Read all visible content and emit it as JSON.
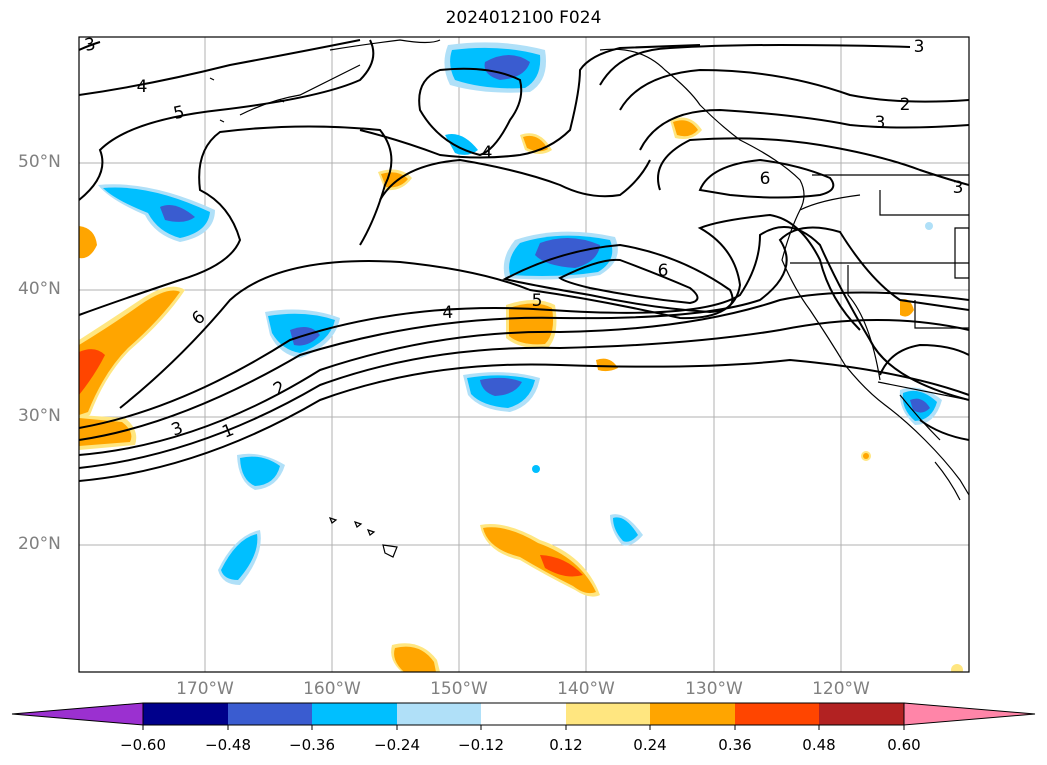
{
  "title": "2024012100 F024",
  "map": {
    "lat_labels": [
      "50°N",
      "40°N",
      "30°N",
      "20°N"
    ],
    "lon_labels": [
      "170°W",
      "160°W",
      "150°W",
      "140°W",
      "130°W",
      "120°W"
    ],
    "contour_labels": [
      "3",
      "4",
      "5",
      "6",
      "4",
      "5",
      "6",
      "4",
      "2",
      "3",
      "1",
      "2",
      "3",
      "6",
      "3"
    ]
  },
  "colorbar": {
    "ticks": [
      "−0.60",
      "−0.48",
      "−0.36",
      "−0.24",
      "−0.12",
      "0.12",
      "0.24",
      "0.36",
      "0.48",
      "0.60"
    ],
    "colors": [
      "#9b30d0",
      "#00008b",
      "#3a5cd0",
      "#00bfff",
      "#b0e0f8",
      "#ffffff",
      "#ffe680",
      "#ffa500",
      "#ff4500",
      "#b22222",
      "#ff85a8"
    ]
  }
}
